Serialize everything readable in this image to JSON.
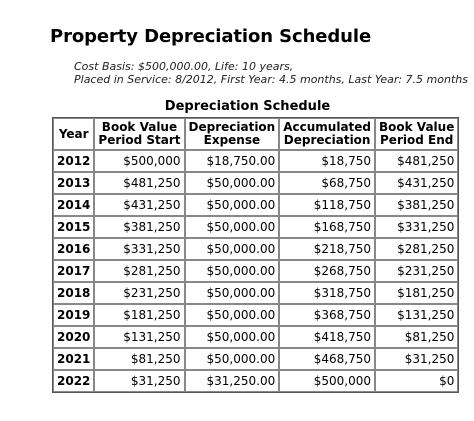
{
  "title": "Property Depreciation Schedule",
  "basis_line1": "Cost Basis: $500,000.00, Life: 10 years,",
  "basis_line2": "Placed in Service: 8/2012, First Year: 4.5 months, Last Year: 7.5 months",
  "table": {
    "caption": "Depreciation Schedule",
    "headers": [
      [
        "Year"
      ],
      [
        "Book Value",
        "Period Start"
      ],
      [
        "Depreciation",
        "Expense"
      ],
      [
        "Accumulated",
        "Depreciation"
      ],
      [
        "Book Value",
        "Period End"
      ]
    ],
    "rows": [
      [
        "2012",
        "$500,000",
        "$18,750.00",
        "$18,750",
        "$481,250"
      ],
      [
        "2013",
        "$481,250",
        "$50,000.00",
        "$68,750",
        "$431,250"
      ],
      [
        "2014",
        "$431,250",
        "$50,000.00",
        "$118,750",
        "$381,250"
      ],
      [
        "2015",
        "$381,250",
        "$50,000.00",
        "$168,750",
        "$331,250"
      ],
      [
        "2016",
        "$331,250",
        "$50,000.00",
        "$218,750",
        "$281,250"
      ],
      [
        "2017",
        "$281,250",
        "$50,000.00",
        "$268,750",
        "$231,250"
      ],
      [
        "2018",
        "$231,250",
        "$50,000.00",
        "$318,750",
        "$181,250"
      ],
      [
        "2019",
        "$181,250",
        "$50,000.00",
        "$368,750",
        "$131,250"
      ],
      [
        "2020",
        "$131,250",
        "$50,000.00",
        "$418,750",
        "$81,250"
      ],
      [
        "2021",
        "$81,250",
        "$50,000.00",
        "$468,750",
        "$31,250"
      ],
      [
        "2022",
        "$31,250",
        "$31,250.00",
        "$500,000",
        "$0"
      ]
    ]
  }
}
